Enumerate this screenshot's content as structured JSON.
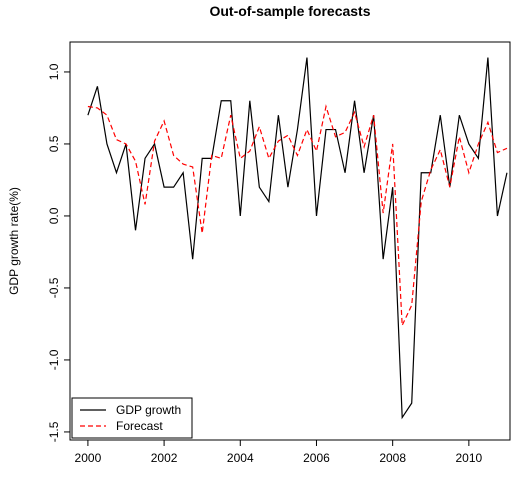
{
  "chart_data": {
    "type": "line",
    "title": "Out-of-sample forecasts",
    "ylabel": "GDP growth rate(%)",
    "x": [
      2000,
      2000.25,
      2000.5,
      2000.75,
      2001,
      2001.25,
      2001.5,
      2001.75,
      2002,
      2002.25,
      2002.5,
      2002.75,
      2003,
      2003.25,
      2003.5,
      2003.75,
      2004,
      2004.25,
      2004.5,
      2004.75,
      2005,
      2005.25,
      2005.5,
      2005.75,
      2006,
      2006.25,
      2006.5,
      2006.75,
      2007,
      2007.25,
      2007.5,
      2007.75,
      2008,
      2008.25,
      2008.5,
      2008.75,
      2009,
      2009.25,
      2009.5,
      2009.75,
      2010,
      2010.25,
      2010.5,
      2010.75,
      2011
    ],
    "series": [
      {
        "name": "GDP growth",
        "color": "#000000",
        "dash": "solid",
        "values": [
          0.7,
          0.9,
          0.5,
          0.3,
          0.5,
          -0.1,
          0.4,
          0.5,
          0.2,
          0.2,
          0.3,
          -0.3,
          0.4,
          0.4,
          0.8,
          0.8,
          0.0,
          0.8,
          0.2,
          0.1,
          0.7,
          0.2,
          0.6,
          1.1,
          0.0,
          0.6,
          0.6,
          0.3,
          0.8,
          0.3,
          0.7,
          -0.3,
          0.2,
          -1.4,
          -1.3,
          0.3,
          0.3,
          0.7,
          0.2,
          0.7,
          0.5,
          0.4,
          1.1,
          0.0,
          0.3
        ]
      },
      {
        "name": "Forecast",
        "color": "#ff0000",
        "dash": "dashed",
        "values": [
          0.76,
          0.75,
          0.7,
          0.53,
          0.5,
          0.38,
          0.08,
          0.52,
          0.66,
          0.42,
          0.36,
          0.34,
          -0.12,
          0.42,
          0.4,
          0.7,
          0.4,
          0.45,
          0.62,
          0.4,
          0.52,
          0.56,
          0.42,
          0.6,
          0.45,
          0.76,
          0.55,
          0.58,
          0.72,
          0.48,
          0.7,
          0.02,
          0.5,
          -0.76,
          -0.62,
          0.1,
          0.32,
          0.46,
          0.2,
          0.55,
          0.3,
          0.5,
          0.65,
          0.44,
          0.47
        ]
      }
    ],
    "xlim": [
      1999.53,
      2011.08
    ],
    "xticks": [
      2000,
      2002,
      2004,
      2006,
      2008,
      2010
    ],
    "ylim": [
      -1.556,
      1.208
    ],
    "yticks": [
      {
        "value": -1.5,
        "label": "-1.5"
      },
      {
        "value": -1.0,
        "label": "-1.0"
      },
      {
        "value": -0.5,
        "label": "-0.5"
      },
      {
        "value": 0,
        "label": "0.0"
      },
      {
        "value": 0.5,
        "label": "0.5"
      },
      {
        "value": 1.0,
        "label": "1.0"
      }
    ],
    "legend": "bottom-left"
  }
}
